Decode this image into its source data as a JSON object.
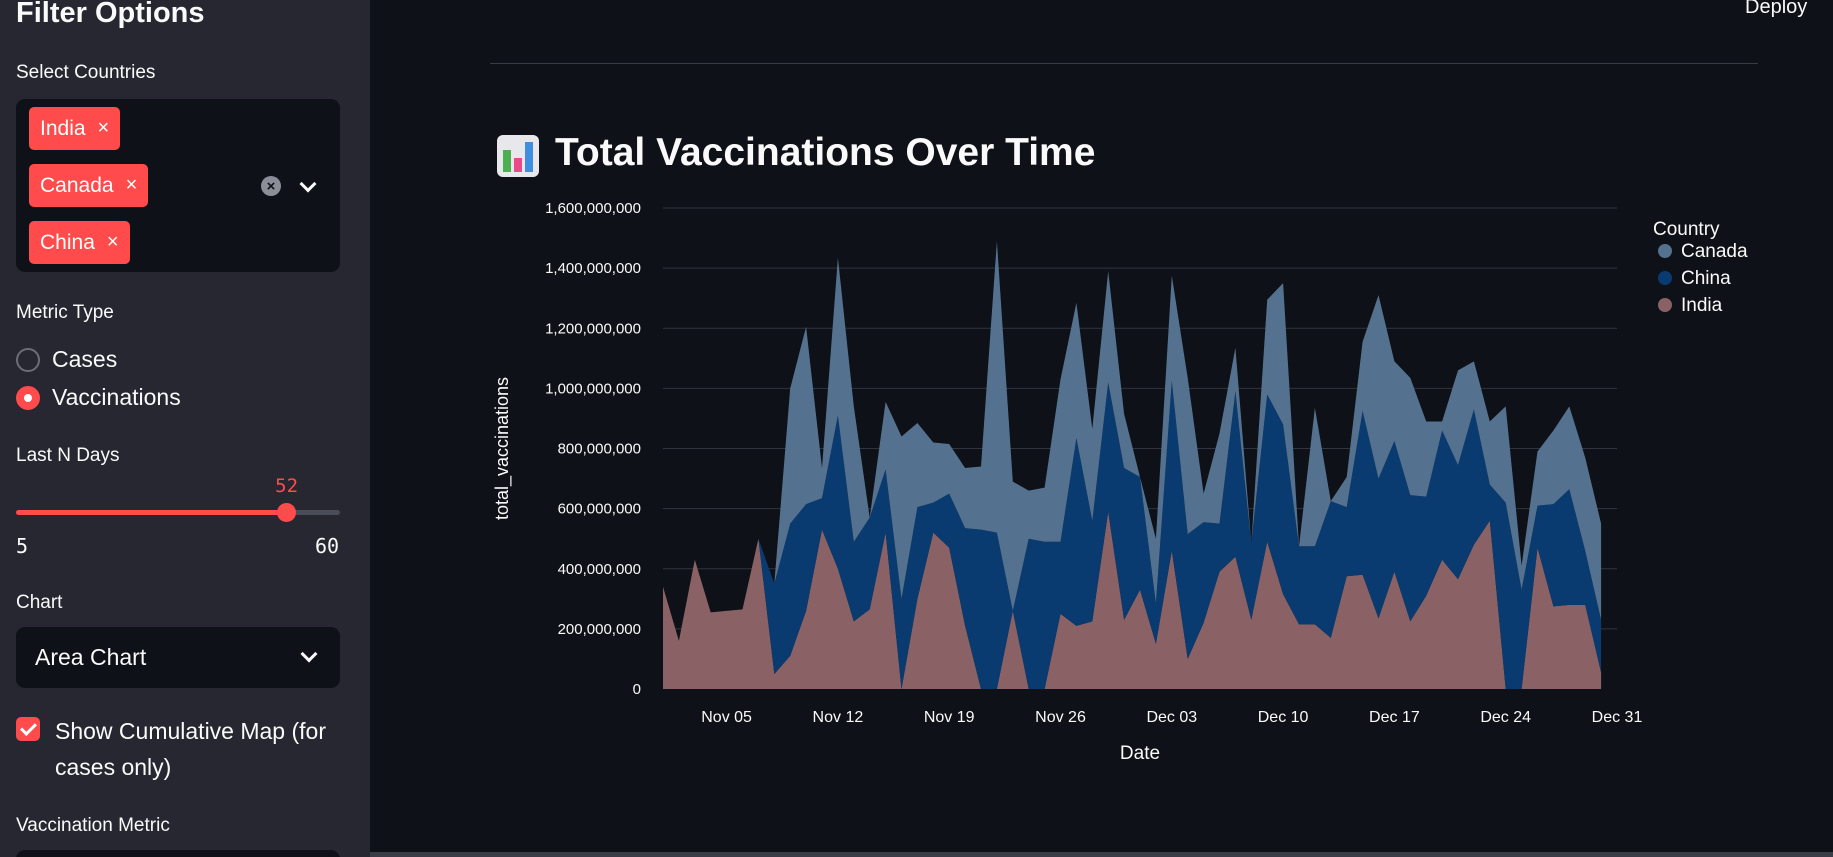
{
  "sidebar": {
    "title": "Filter Options",
    "countries": {
      "label": "Select Countries",
      "selected": [
        "India",
        "Canada",
        "China"
      ],
      "remove_glyph": "×",
      "clear_glyph": "×",
      "icons": {
        "clear": "clear-all-icon",
        "dropdown": "chevron-down-icon"
      }
    },
    "metric": {
      "label": "Metric Type",
      "options": [
        {
          "label": "Cases",
          "selected": false
        },
        {
          "label": "Vaccinations",
          "selected": true
        }
      ]
    },
    "last_n_days": {
      "label": "Last N Days",
      "value": "52",
      "min": "5",
      "max": "60"
    },
    "chart": {
      "label": "Chart",
      "value": "Area Chart"
    },
    "cumulative": {
      "label": "Show Cumulative Map (for cases only)",
      "checked": true
    },
    "vaccination_metric": {
      "label": "Vaccination Metric"
    }
  },
  "header": {
    "deploy_label": "Deploy"
  },
  "main": {
    "heading": "Total Vaccinations Over Time",
    "heading_icon": "bar-chart-icon"
  },
  "colors": {
    "accent": "#ff4b4b",
    "canada": "#54728f",
    "china": "#0a3b70",
    "india": "#8a6265"
  },
  "chart_data": {
    "type": "area",
    "stacked": true,
    "xlabel": "Date",
    "ylabel": "total_vaccinations",
    "ylim": [
      0,
      1600000000
    ],
    "yticks": [
      0,
      200000000,
      400000000,
      600000000,
      800000000,
      1000000000,
      1200000000,
      1400000000,
      1600000000
    ],
    "ytick_labels": [
      "0",
      "200,000,000",
      "400,000,000",
      "600,000,000",
      "800,000,000",
      "1,000,000,000",
      "1,200,000,000",
      "1,400,000,000",
      "1,600,000,000"
    ],
    "xtick_labels": [
      "Nov 05",
      "Nov 12",
      "Nov 19",
      "Nov 26",
      "Dec 03",
      "Dec 10",
      "Dec 17",
      "Dec 24",
      "Dec 31"
    ],
    "xtick_dates": [
      "2023-11-05",
      "2023-11-12",
      "2023-11-19",
      "2023-11-26",
      "2023-12-03",
      "2023-12-10",
      "2023-12-17",
      "2023-12-24",
      "2023-12-31"
    ],
    "x_start": "2023-11-01",
    "x_end": "2023-12-31",
    "legend": {
      "title": "Country",
      "position": "right"
    },
    "grid": true,
    "series": [
      {
        "name": "India",
        "values": [
          340000000,
          160000000,
          430000000,
          255000000,
          260000000,
          265000000,
          500000000,
          50000000,
          110000000,
          260000000,
          530000000,
          400000000,
          225000000,
          265000000,
          520000000,
          0,
          300000000,
          520000000,
          470000000,
          210000000,
          0,
          0,
          260000000,
          0,
          0,
          250000000,
          210000000,
          225000000,
          590000000,
          230000000,
          330000000,
          150000000,
          460000000,
          100000000,
          220000000,
          390000000,
          440000000,
          230000000,
          490000000,
          315000000,
          215000000,
          215000000,
          170000000,
          375000000,
          380000000,
          235000000,
          390000000,
          225000000,
          310000000,
          430000000,
          365000000,
          480000000,
          560000000,
          0,
          0,
          470000000,
          275000000,
          280000000,
          280000000,
          55000000
        ]
      },
      {
        "name": "China",
        "values": [
          0,
          0,
          0,
          0,
          0,
          0,
          0,
          300000000,
          440000000,
          355000000,
          105000000,
          510000000,
          265000000,
          305000000,
          210000000,
          300000000,
          305000000,
          100000000,
          180000000,
          325000000,
          530000000,
          520000000,
          0,
          500000000,
          490000000,
          240000000,
          625000000,
          335000000,
          430000000,
          505000000,
          375000000,
          135000000,
          565000000,
          415000000,
          335000000,
          160000000,
          550000000,
          255000000,
          490000000,
          565000000,
          260000000,
          260000000,
          455000000,
          230000000,
          545000000,
          465000000,
          435000000,
          420000000,
          330000000,
          430000000,
          380000000,
          450000000,
          120000000,
          620000000,
          330000000,
          140000000,
          340000000,
          385000000,
          180000000,
          175000000
        ]
      },
      {
        "name": "Canada",
        "values": [
          0,
          0,
          0,
          0,
          0,
          0,
          0,
          0,
          450000000,
          590000000,
          100000000,
          525000000,
          450000000,
          0,
          225000000,
          540000000,
          280000000,
          200000000,
          165000000,
          200000000,
          210000000,
          970000000,
          430000000,
          160000000,
          180000000,
          540000000,
          450000000,
          305000000,
          370000000,
          180000000,
          0,
          215000000,
          350000000,
          520000000,
          95000000,
          300000000,
          145000000,
          0,
          315000000,
          470000000,
          0,
          460000000,
          0,
          100000000,
          230000000,
          610000000,
          265000000,
          390000000,
          250000000,
          30000000,
          315000000,
          160000000,
          210000000,
          320000000,
          80000000,
          180000000,
          245000000,
          275000000,
          310000000,
          320000000
        ]
      }
    ]
  }
}
